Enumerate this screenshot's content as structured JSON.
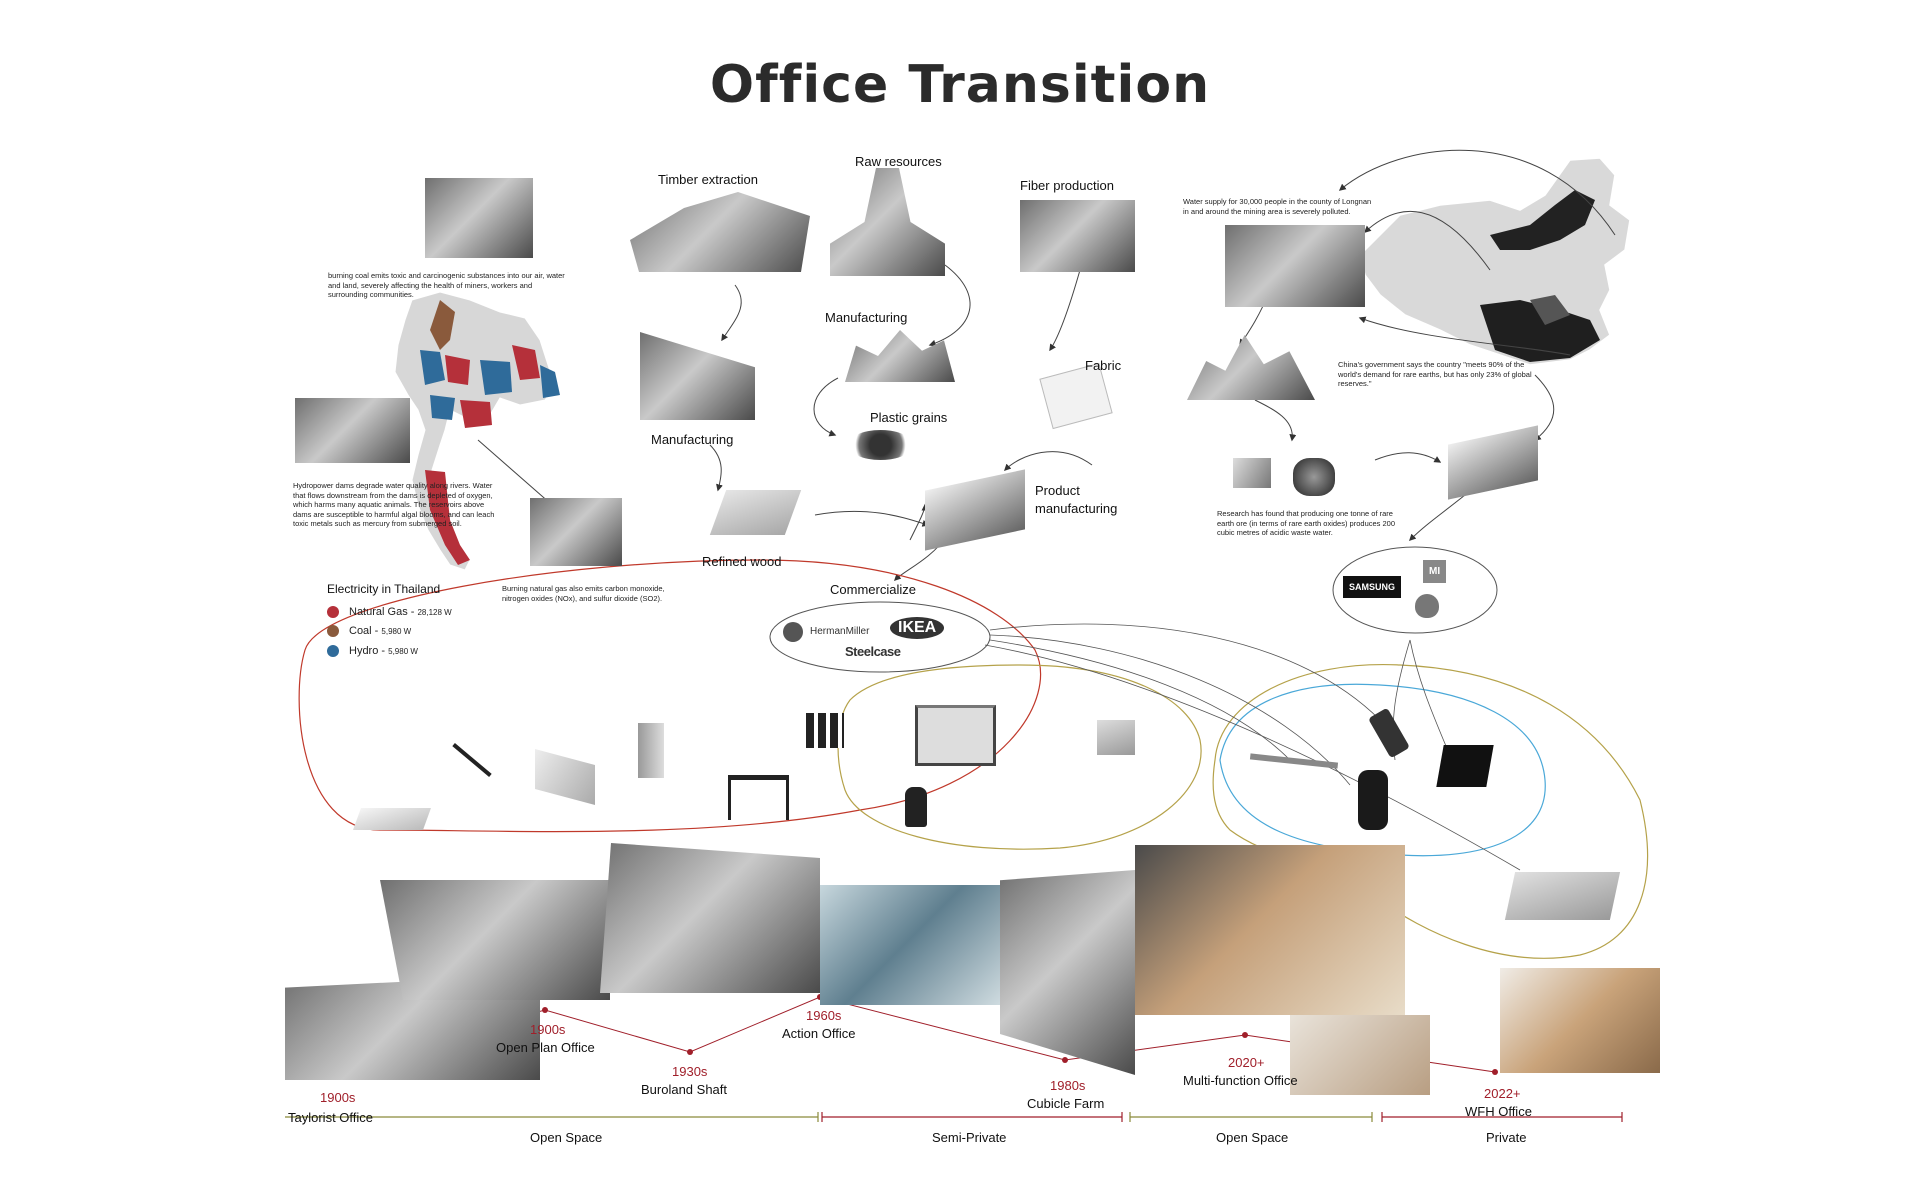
{
  "title": "Office Transition",
  "thailand": {
    "coal_note": "burning coal emits toxic and carcinogenic substances into our air, water and land, severely affecting the health of miners, workers and surrounding communities.",
    "hydro_note": "Hydropower dams degrade water quality along rivers. Water that flows downstream from the dams is depleted of oxygen, which harms many aquatic animals. The reservoirs above dams are susceptible to harmful algal blooms, and can leach toxic metals such as mercury from submerged soil.",
    "gas_note": "Burning natural gas also emits carbon monoxide, nitrogen oxides (NOx), and sulfur dioxide (SO2).",
    "legend_title": "Electricity in Thailand",
    "legend": [
      {
        "name": "Natural Gas - ",
        "value": "28,128 W",
        "color": "#b5303a"
      },
      {
        "name": "Coal - ",
        "value": "5,980 W",
        "color": "#8a5a3c"
      },
      {
        "name": "Hydro - ",
        "value": "5,980 W",
        "color": "#2f6b9a"
      }
    ]
  },
  "supply_chain": {
    "timber_extraction": "Timber extraction",
    "raw_resources": "Raw resources",
    "fiber_production": "Fiber production",
    "manufacturing_left": "Manufacturing",
    "manufacturing_center": "Manufacturing",
    "plastic_grains": "Plastic grains",
    "fabric": "Fabric",
    "refined_wood": "Refined wood",
    "product_manufacturing_1": "Product",
    "product_manufacturing_2": "manufacturing",
    "commercialize": "Commercialize",
    "brands": {
      "herman_miller": "HermanMiller",
      "ikea": "IKEA",
      "steelcase": "Steelcase"
    }
  },
  "china": {
    "water_note": "Water supply for 30,000 people in the county of Longnan in and around the mining area is severely polluted.",
    "gov_note": "China's government says the country \"meets 90% of the world's demand for rare earths, but has only 23% of global reserves.\"",
    "research_note": "Research has found that producing one tonne of rare earth ore (in terms of rare earth oxides) produces 200 cubic metres of acidic waste water.",
    "brands": {
      "samsung": "SAMSUNG",
      "xiaomi": "MI"
    }
  },
  "timeline": [
    {
      "year": "1900s",
      "name": "Taylorist Office"
    },
    {
      "year": "1900s",
      "name": "Open Plan Office"
    },
    {
      "year": "1930s",
      "name": "Buroland Shaft"
    },
    {
      "year": "1960s",
      "name": "Action Office"
    },
    {
      "year": "1980s",
      "name": "Cubicle Farm"
    },
    {
      "year": "2020+",
      "name": "Multi-function Office"
    },
    {
      "year": "2022+",
      "name": "WFH Office"
    }
  ],
  "zones": [
    "Open Space",
    "Semi-Private",
    "Open Space",
    "Private"
  ],
  "colors": {
    "timeline_red": "#a01f2a",
    "zone_olive": "#8a8a3a",
    "loop_red": "#c0392b",
    "loop_olive": "#b5a24a",
    "loop_blue": "#4aa8d8"
  }
}
